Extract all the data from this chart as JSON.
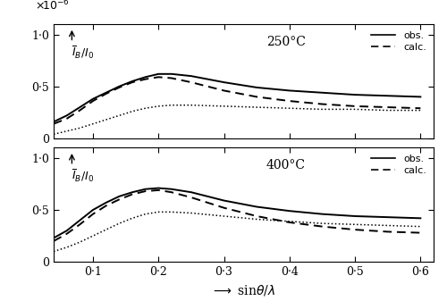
{
  "title_top": "250°C",
  "title_bottom": "400°C",
  "xlim": [
    0.04,
    0.62
  ],
  "ylim": [
    0.0,
    1.1
  ],
  "xticks": [
    0.1,
    0.2,
    0.3,
    0.4,
    0.5,
    0.6
  ],
  "yticks": [
    0.0,
    0.5,
    1.0
  ],
  "ytick_labels": [
    "0",
    "0·5",
    "1·0"
  ],
  "xtick_labels": [
    "0·1",
    "0·2",
    "0·3",
    "0·4",
    "0·5",
    "0·6"
  ],
  "panel1": {
    "obs_x": [
      0.04,
      0.06,
      0.08,
      0.1,
      0.12,
      0.14,
      0.16,
      0.18,
      0.2,
      0.22,
      0.25,
      0.3,
      0.35,
      0.4,
      0.45,
      0.5,
      0.55,
      0.6
    ],
    "obs_y": [
      0.16,
      0.22,
      0.3,
      0.38,
      0.44,
      0.5,
      0.55,
      0.59,
      0.62,
      0.62,
      0.6,
      0.54,
      0.49,
      0.46,
      0.44,
      0.42,
      0.41,
      0.4
    ],
    "calc_x": [
      0.04,
      0.06,
      0.08,
      0.1,
      0.12,
      0.14,
      0.16,
      0.18,
      0.2,
      0.22,
      0.25,
      0.3,
      0.35,
      0.4,
      0.45,
      0.5,
      0.55,
      0.6
    ],
    "calc_y": [
      0.14,
      0.19,
      0.27,
      0.36,
      0.43,
      0.49,
      0.54,
      0.57,
      0.59,
      0.58,
      0.54,
      0.46,
      0.4,
      0.36,
      0.33,
      0.31,
      0.3,
      0.29
    ],
    "dot_x": [
      0.04,
      0.06,
      0.08,
      0.1,
      0.12,
      0.14,
      0.16,
      0.18,
      0.2,
      0.22,
      0.25,
      0.3,
      0.35,
      0.4,
      0.45,
      0.5,
      0.55,
      0.6
    ],
    "dot_y": [
      0.04,
      0.07,
      0.1,
      0.14,
      0.18,
      0.22,
      0.26,
      0.29,
      0.31,
      0.32,
      0.32,
      0.31,
      0.3,
      0.29,
      0.28,
      0.28,
      0.27,
      0.27
    ]
  },
  "panel2": {
    "obs_x": [
      0.04,
      0.06,
      0.08,
      0.1,
      0.12,
      0.14,
      0.16,
      0.18,
      0.2,
      0.22,
      0.25,
      0.3,
      0.35,
      0.4,
      0.45,
      0.5,
      0.55,
      0.6
    ],
    "obs_y": [
      0.23,
      0.3,
      0.4,
      0.5,
      0.57,
      0.63,
      0.67,
      0.7,
      0.71,
      0.7,
      0.67,
      0.59,
      0.53,
      0.49,
      0.46,
      0.44,
      0.43,
      0.42
    ],
    "calc_x": [
      0.04,
      0.06,
      0.08,
      0.1,
      0.12,
      0.14,
      0.16,
      0.18,
      0.2,
      0.22,
      0.25,
      0.3,
      0.35,
      0.4,
      0.45,
      0.5,
      0.55,
      0.6
    ],
    "calc_y": [
      0.2,
      0.27,
      0.36,
      0.46,
      0.54,
      0.6,
      0.65,
      0.68,
      0.69,
      0.67,
      0.62,
      0.52,
      0.44,
      0.38,
      0.34,
      0.31,
      0.29,
      0.28
    ],
    "dot_x": [
      0.04,
      0.06,
      0.08,
      0.1,
      0.12,
      0.14,
      0.16,
      0.18,
      0.2,
      0.22,
      0.25,
      0.3,
      0.35,
      0.4,
      0.45,
      0.5,
      0.55,
      0.6
    ],
    "dot_y": [
      0.1,
      0.14,
      0.19,
      0.25,
      0.31,
      0.37,
      0.42,
      0.46,
      0.48,
      0.48,
      0.47,
      0.44,
      0.41,
      0.39,
      0.37,
      0.36,
      0.35,
      0.34
    ]
  },
  "legend_obs": "obs.",
  "legend_calc": "calc.",
  "line_color": "#000000",
  "bg_color": "#ffffff"
}
